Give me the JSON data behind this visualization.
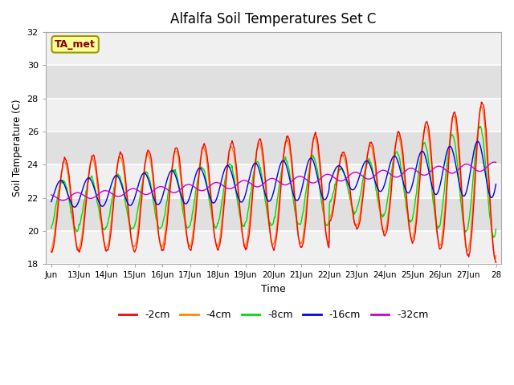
{
  "title": "Alfalfa Soil Temperatures Set C",
  "xlabel": "Time",
  "ylabel": "Soil Temperature (C)",
  "ylim": [
    18,
    32
  ],
  "xtick_labels": [
    "Jun",
    "13Jun",
    "14Jun",
    "15Jun",
    "16Jun",
    "17Jun",
    "18Jun",
    "19Jun",
    "20Jun",
    "21Jun",
    "22Jun",
    "23Jun",
    "24Jun",
    "25Jun",
    "26Jun",
    "27Jun",
    "28"
  ],
  "ytick_values": [
    18,
    20,
    22,
    24,
    26,
    28,
    30,
    32
  ],
  "colors": {
    "2cm": "#ff0000",
    "4cm": "#ff8800",
    "8cm": "#00dd00",
    "16cm": "#0000ee",
    "32cm": "#cc00cc"
  },
  "annotation_text": "TA_met",
  "annotation_bg": "#ffff99",
  "annotation_border": "#999900",
  "annotation_text_color": "#880000",
  "title_fontsize": 12,
  "band_colors": [
    "#f0f0f0",
    "#e0e0e0"
  ]
}
